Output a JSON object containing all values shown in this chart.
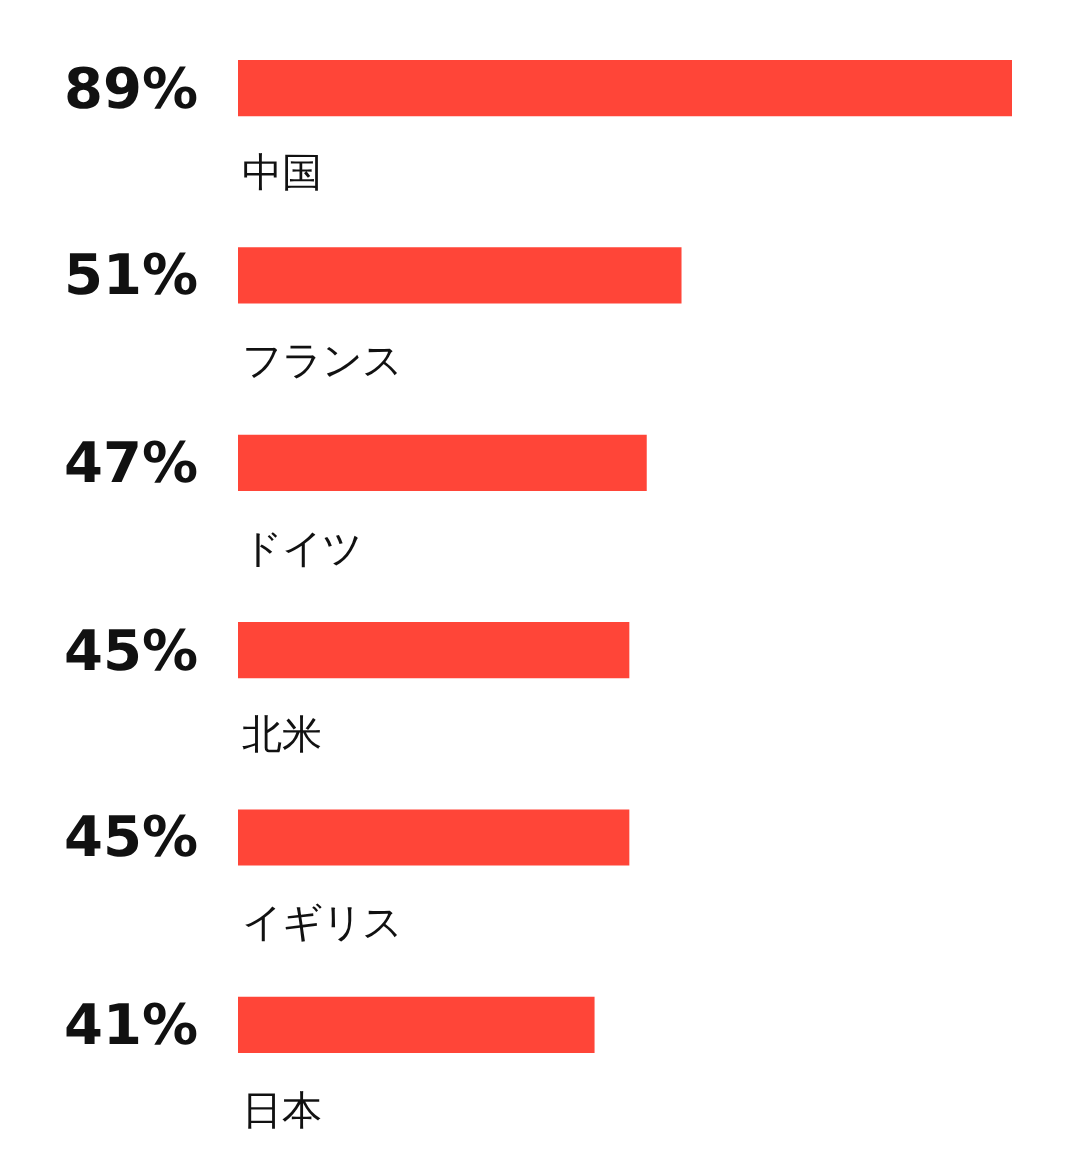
{
  "chart_data": {
    "type": "bar",
    "orientation": "horizontal",
    "categories": [
      "中国",
      "フランス",
      "ドイツ",
      "北米",
      "イギリス",
      "日本"
    ],
    "values": [
      89,
      51,
      47,
      45,
      45,
      41
    ],
    "value_labels": [
      "89%",
      "51%",
      "47%",
      "45%",
      "45%",
      "41%"
    ],
    "color": "#ff4538"
  }
}
